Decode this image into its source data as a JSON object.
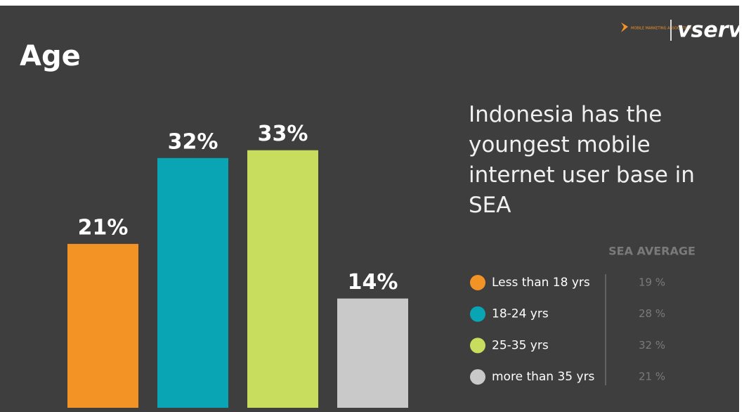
{
  "chart_data": {
    "type": "bar",
    "title": "Age",
    "categories": [
      "Less than 18 yrs",
      "18-24 yrs",
      "25-35 yrs",
      "more than 35 yrs"
    ],
    "values": [
      21,
      32,
      33,
      14
    ],
    "value_labels": [
      "21%",
      "32%",
      "33%",
      "14%"
    ],
    "colors": [
      "#f39325",
      "#0aa5b5",
      "#c8dc5e",
      "#c9c9c9"
    ],
    "annotation": "Indonesia has the youngest mobile internet user base in SEA",
    "sea_average": {
      "title": "SEA AVERAGE",
      "labels": [
        "19 %",
        "28 %",
        "32 %",
        "21 %"
      ]
    },
    "logos": {
      "mma": "MOBILE MARKETING ASSOCIATION",
      "vserv": "vserv"
    }
  }
}
